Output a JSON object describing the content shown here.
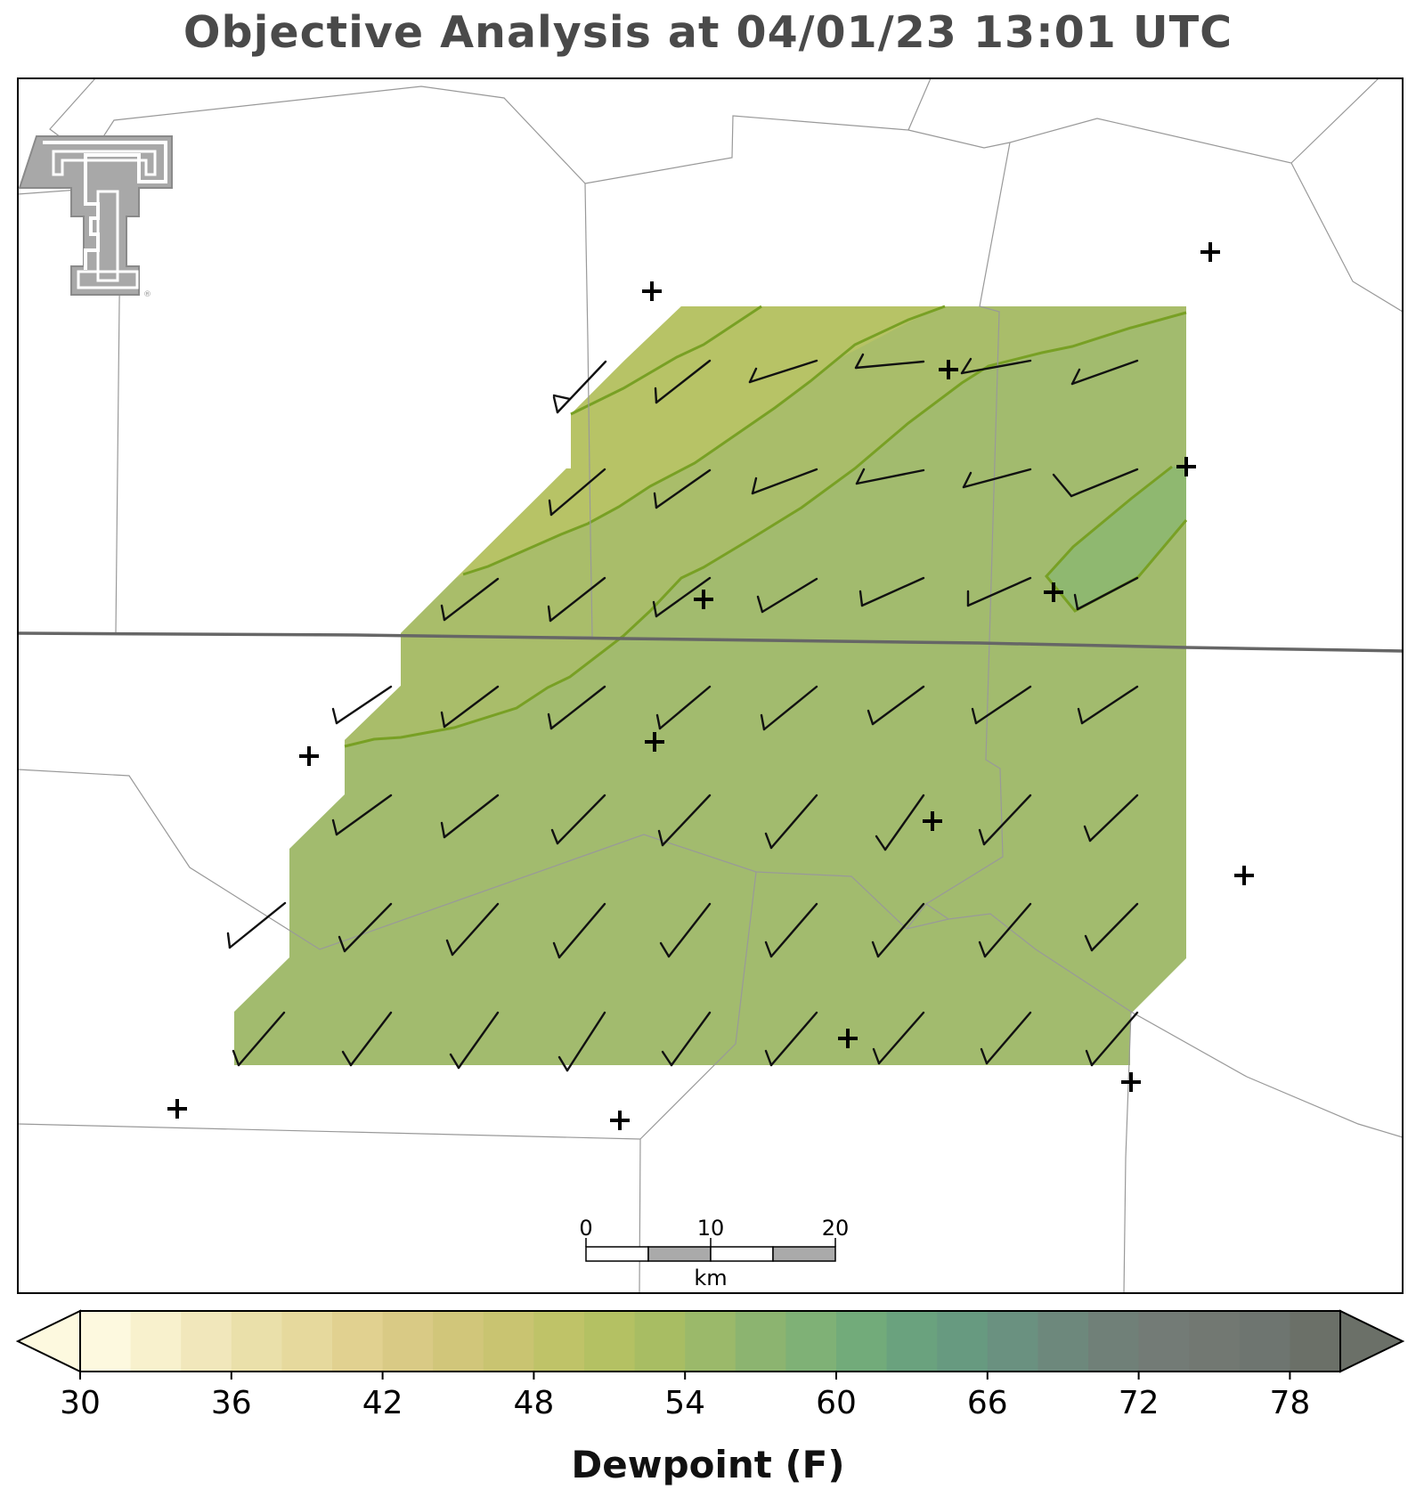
{
  "title": "Objective Analysis at 04/01/23 13:01 UTC",
  "logo": {
    "name": "texas-tech-double-t-logo",
    "mark": "®"
  },
  "colors": {
    "field_light": "#b7c366",
    "field_main": "#a2bb6e",
    "field_dark": "#8fb870",
    "contour": "#78a024",
    "boundary": "#999999",
    "state_line": "#666666",
    "barb": "#111111"
  },
  "scale_bar": {
    "labels": [
      "0",
      "10",
      "20"
    ],
    "unit": "km"
  },
  "colorbar": {
    "title": "Dewpoint (F)",
    "min": 30,
    "max": 80,
    "step": 2,
    "tick_labels": [
      "30",
      "36",
      "42",
      "48",
      "54",
      "60",
      "66",
      "72",
      "78"
    ],
    "colors": [
      "#fdf9df",
      "#f8f1cd",
      "#f1e7bb",
      "#eae0aa",
      "#e6d99d",
      "#e1d190",
      "#d9ca85",
      "#d1c67a",
      "#c9c471",
      "#bfc368",
      "#b4c163",
      "#a8bd63",
      "#9bb96a",
      "#8cb470",
      "#7fb176",
      "#72ab7a",
      "#6aa27e",
      "#679a80",
      "#6a9180",
      "#6d887c",
      "#708078",
      "#737b76",
      "#727872",
      "#6e7570",
      "#6b7068"
    ]
  }
}
